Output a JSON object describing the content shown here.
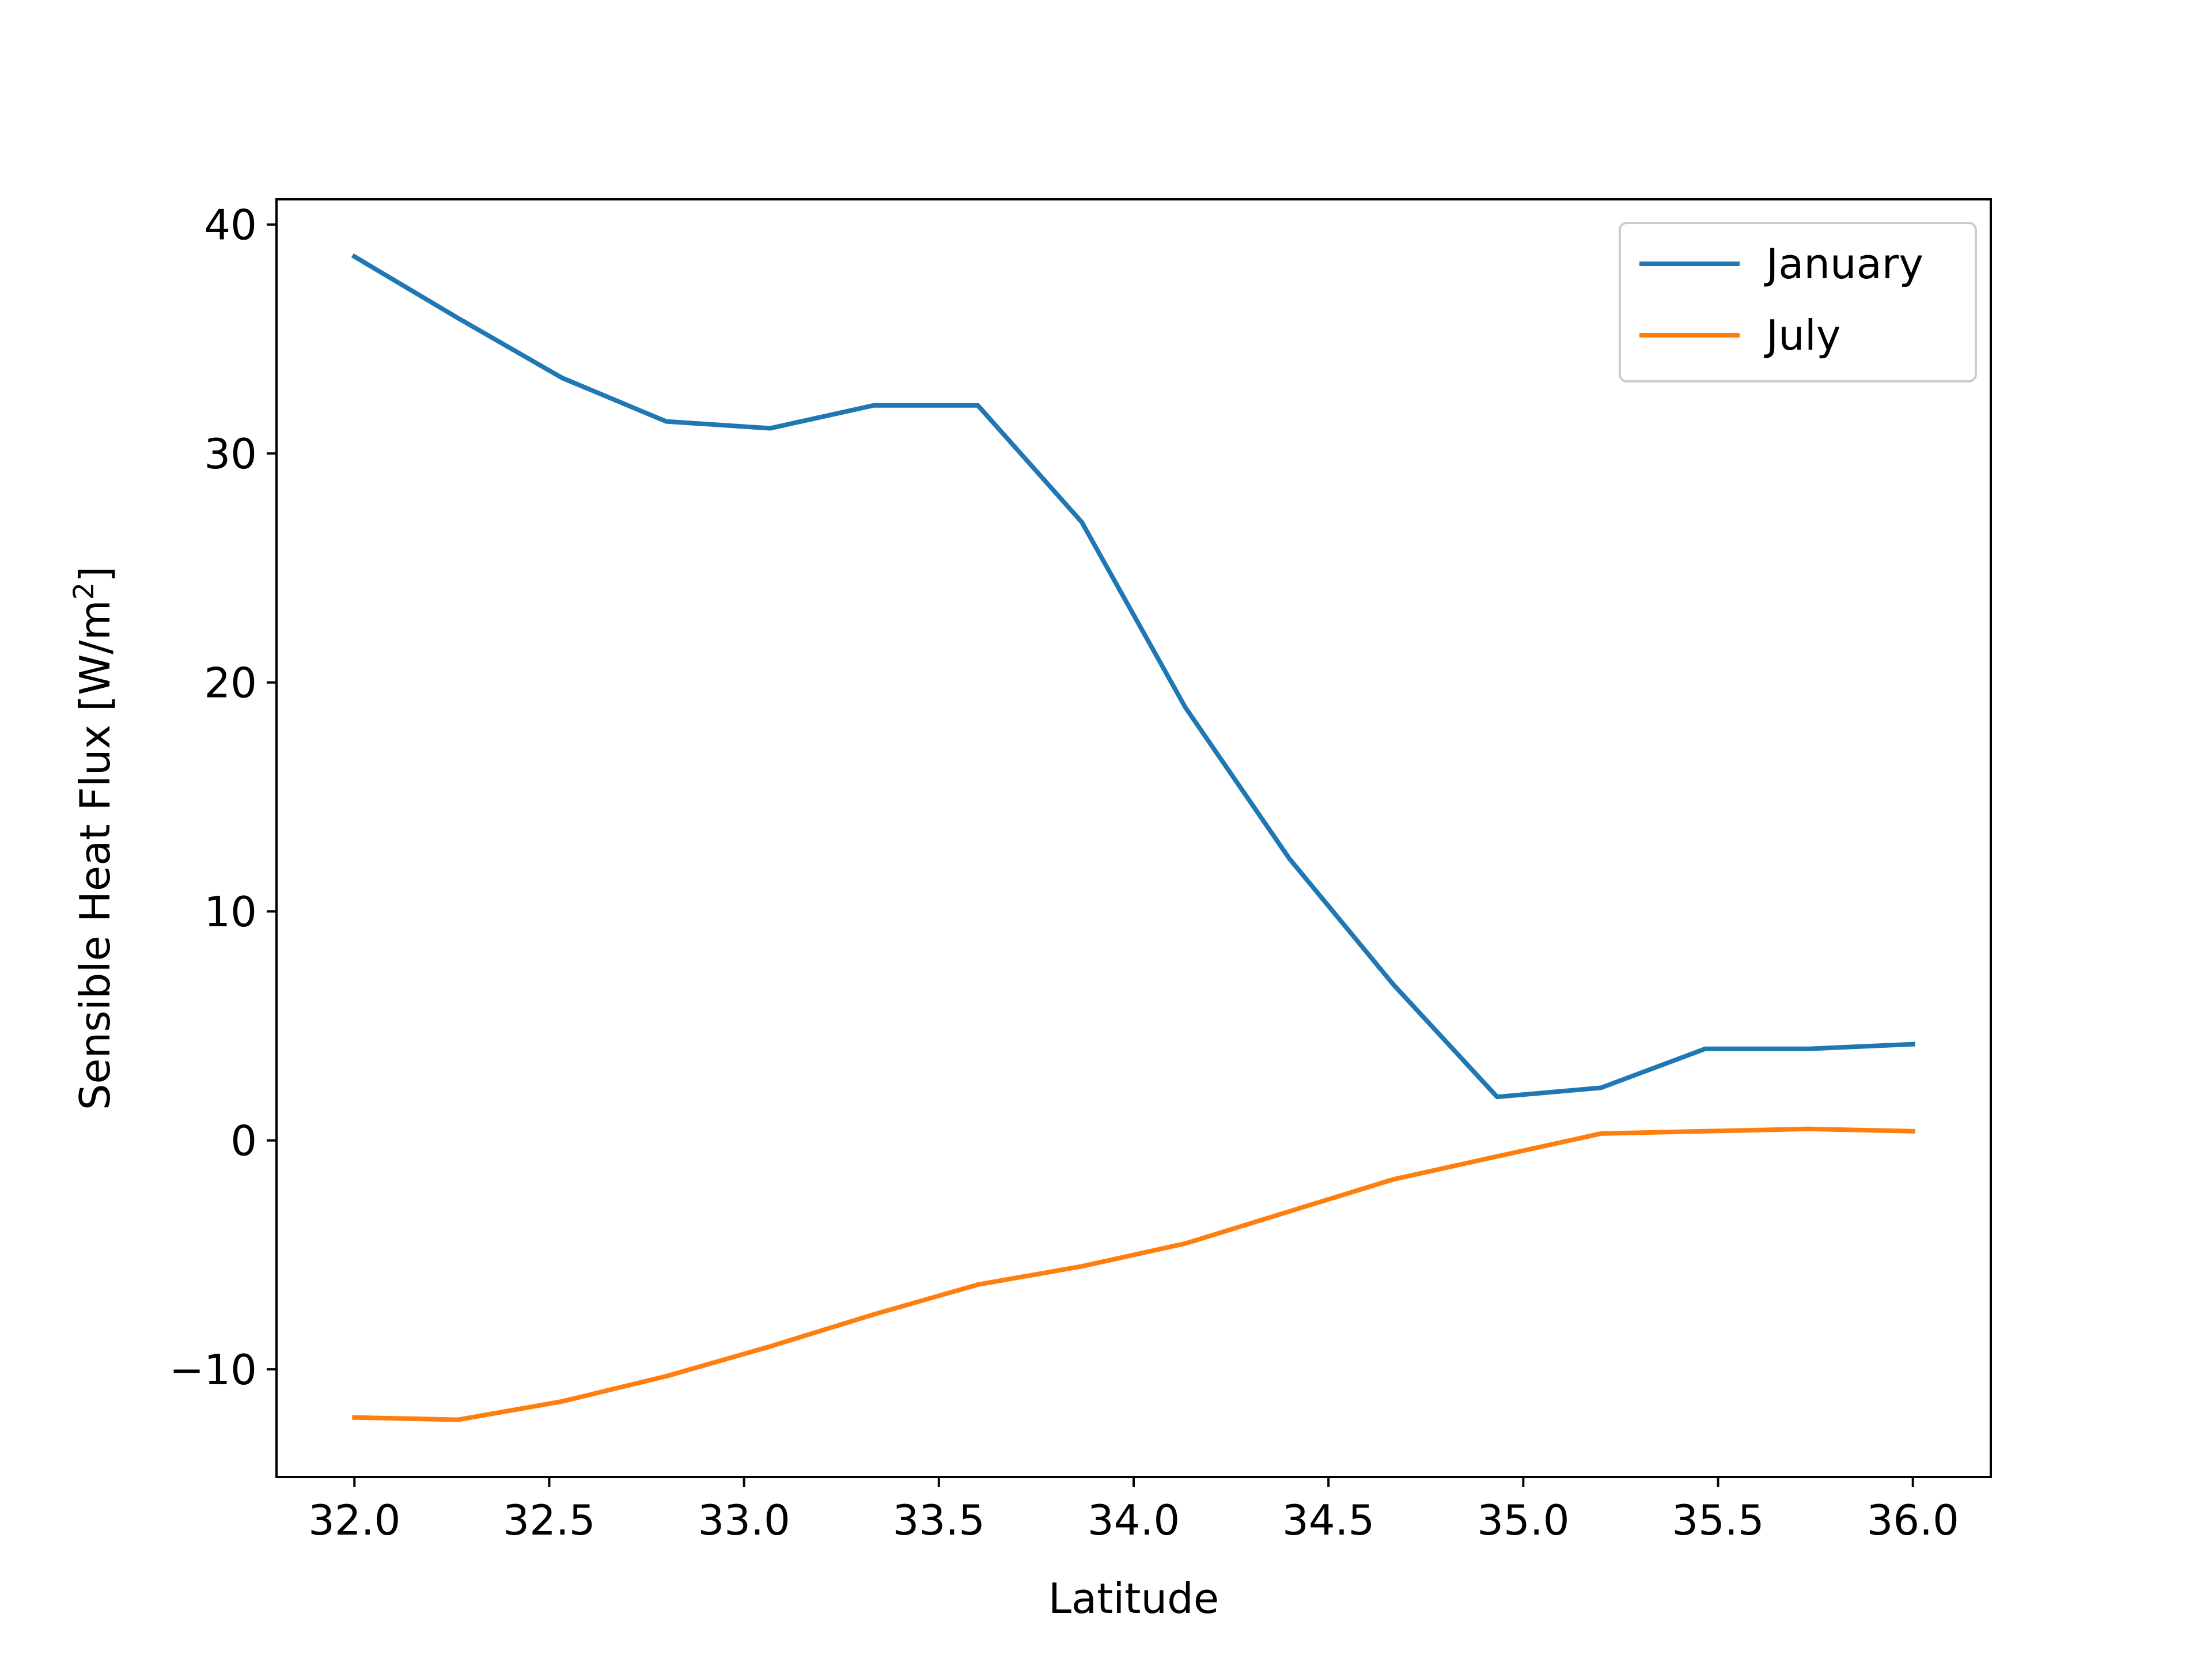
{
  "chart_data": {
    "type": "line",
    "title": "",
    "xlabel": "Latitude",
    "ylabel_main": "Sensible Heat Flux [W/m",
    "ylabel_sup": "2",
    "ylabel_end": "]",
    "xlim": [
      31.8,
      36.2
    ],
    "ylim": [
      -14.7,
      41.1
    ],
    "xticks": [
      32.0,
      32.5,
      33.0,
      33.5,
      34.0,
      34.5,
      35.0,
      35.5,
      36.0
    ],
    "xtick_labels": [
      "32.0",
      "32.5",
      "33.0",
      "33.5",
      "34.0",
      "34.5",
      "35.0",
      "35.5",
      "36.0"
    ],
    "yticks": [
      -10,
      0,
      10,
      20,
      30,
      40
    ],
    "ytick_labels": [
      "−10",
      "0",
      "10",
      "20",
      "30",
      "40"
    ],
    "grid": false,
    "legend_position": "top-right",
    "x": [
      32.0,
      32.267,
      32.533,
      32.8,
      33.067,
      33.333,
      33.6,
      33.867,
      34.133,
      34.4,
      34.667,
      34.933,
      35.2,
      35.467,
      35.733,
      36.0
    ],
    "series": [
      {
        "name": "January",
        "color": "#1f77b4",
        "values": [
          38.6,
          35.9,
          33.3,
          31.4,
          31.1,
          32.1,
          32.1,
          27.0,
          18.9,
          12.3,
          6.8,
          1.9,
          2.3,
          4.0,
          4.0,
          4.2
        ]
      },
      {
        "name": "July",
        "color": "#ff7f0e",
        "values": [
          -12.1,
          -12.2,
          -11.4,
          -10.3,
          -9.0,
          -7.6,
          -6.3,
          -5.5,
          -4.5,
          -3.1,
          -1.7,
          -0.7,
          0.3,
          0.4,
          0.5,
          0.4
        ]
      }
    ]
  }
}
